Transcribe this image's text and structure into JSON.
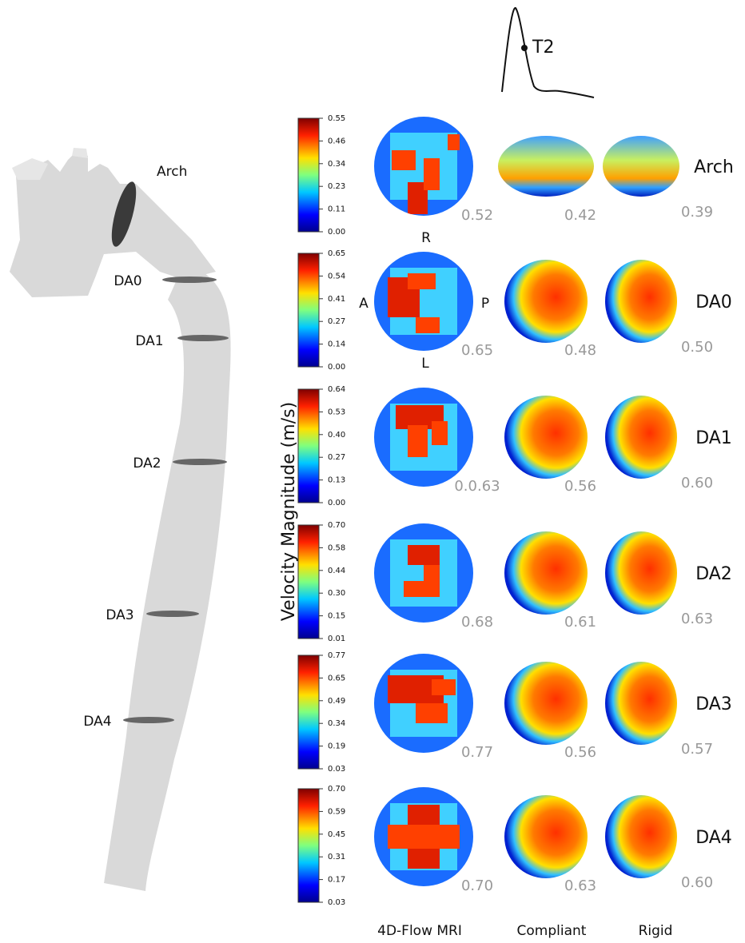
{
  "waveform": {
    "label": "T2"
  },
  "aorta": {
    "labels": [
      "Arch",
      "DA0",
      "DA1",
      "DA2",
      "DA3",
      "DA4"
    ]
  },
  "colorbar_label": "Velocity Magnitude (m/s)",
  "orientation": {
    "top": "R",
    "left": "A",
    "right": "P",
    "bottom": "L"
  },
  "rows": [
    {
      "label": "Arch",
      "ticks": [
        "0.55",
        "0.46",
        "0.34",
        "0.23",
        "0.11",
        "0.00"
      ],
      "mri": "0.52",
      "compliant": "0.42",
      "rigid": "0.39"
    },
    {
      "label": "DA0",
      "ticks": [
        "0.65",
        "0.54",
        "0.41",
        "0.27",
        "0.14",
        "0.00"
      ],
      "mri": "0.65",
      "compliant": "0.48",
      "rigid": "0.50"
    },
    {
      "label": "DA1",
      "ticks": [
        "0.64",
        "0.53",
        "0.40",
        "0.27",
        "0.13",
        "0.00"
      ],
      "mri": "0.0.63",
      "compliant": "0.56",
      "rigid": "0.60"
    },
    {
      "label": "DA2",
      "ticks": [
        "0.70",
        "0.58",
        "0.44",
        "0.30",
        "0.15",
        "0.01"
      ],
      "mri": "0.68",
      "compliant": "0.61",
      "rigid": "0.63"
    },
    {
      "label": "DA3",
      "ticks": [
        "0.77",
        "0.65",
        "0.49",
        "0.34",
        "0.19",
        "0.03"
      ],
      "mri": "0.77",
      "compliant": "0.56",
      "rigid": "0.57"
    },
    {
      "label": "DA4",
      "ticks": [
        "0.70",
        "0.59",
        "0.45",
        "0.31",
        "0.17",
        "0.03"
      ],
      "mri": "0.70",
      "compliant": "0.63",
      "rigid": "0.60"
    }
  ],
  "columns": [
    "4D-Flow MRI",
    "Compliant",
    "Rigid"
  ]
}
